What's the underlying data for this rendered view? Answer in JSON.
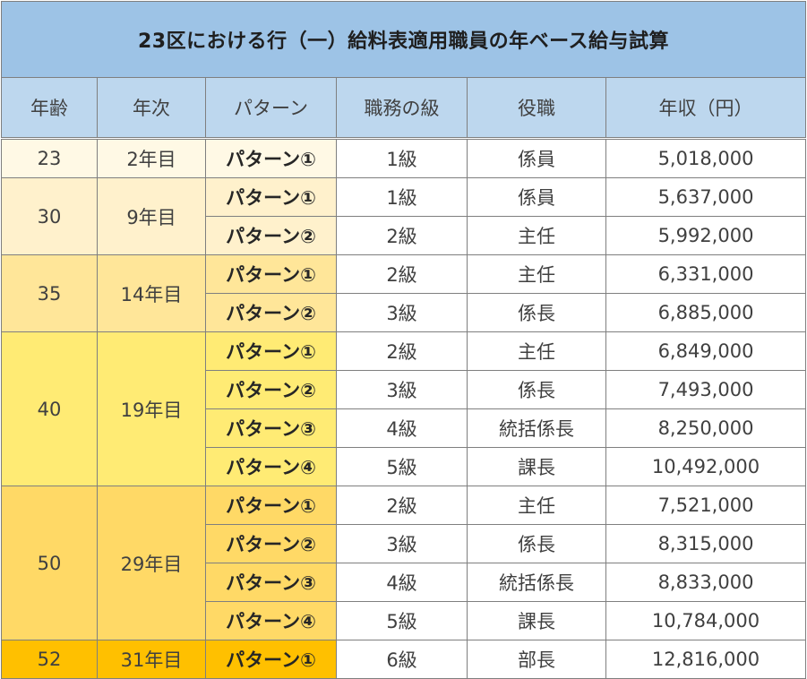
{
  "title": "23区における行（一）給料表適用職員の年ベース給与試算",
  "headers": [
    "年齢",
    "年次",
    "パターン",
    "職務の級",
    "役職",
    "年収（円）"
  ],
  "groups": [
    {
      "age": "23",
      "year": "2年目",
      "color": "#fff9e5",
      "rows": [
        {
          "pattern": "パターン①",
          "grade": "1級",
          "position": "係員",
          "income": "5,018,000"
        }
      ]
    },
    {
      "age": "30",
      "year": "9年目",
      "color": "#fff1cc",
      "rows": [
        {
          "pattern": "パターン①",
          "grade": "1級",
          "position": "係員",
          "income": "5,637,000"
        },
        {
          "pattern": "パターン②",
          "grade": "2級",
          "position": "主任",
          "income": "5,992,000"
        }
      ]
    },
    {
      "age": "35",
      "year": "14年目",
      "color": "#ffe699",
      "rows": [
        {
          "pattern": "パターン①",
          "grade": "2級",
          "position": "主任",
          "income": "6,331,000"
        },
        {
          "pattern": "パターン②",
          "grade": "3級",
          "position": "係長",
          "income": "6,885,000"
        }
      ]
    },
    {
      "age": "40",
      "year": "19年目",
      "color": "#ffeb74",
      "rows": [
        {
          "pattern": "パターン①",
          "grade": "2級",
          "position": "主任",
          "income": "6,849,000"
        },
        {
          "pattern": "パターン②",
          "grade": "3級",
          "position": "係長",
          "income": "7,493,000"
        },
        {
          "pattern": "パターン③",
          "grade": "4級",
          "position": "統括係長",
          "income": "8,250,000"
        },
        {
          "pattern": "パターン④",
          "grade": "5級",
          "position": "課長",
          "income": "10,492,000"
        }
      ]
    },
    {
      "age": "50",
      "year": "29年目",
      "color": "#ffd966",
      "rows": [
        {
          "pattern": "パターン①",
          "grade": "2級",
          "position": "主任",
          "income": "7,521,000"
        },
        {
          "pattern": "パターン②",
          "grade": "3級",
          "position": "係長",
          "income": "8,315,000"
        },
        {
          "pattern": "パターン③",
          "grade": "4級",
          "position": "統括係長",
          "income": "8,833,000"
        },
        {
          "pattern": "パターン④",
          "grade": "5級",
          "position": "課長",
          "income": "10,784,000"
        }
      ]
    },
    {
      "age": "52",
      "year": "31年目",
      "color": "#ffc000",
      "rows": [
        {
          "pattern": "パターン①",
          "grade": "6級",
          "position": "部長",
          "income": "12,816,000"
        }
      ]
    }
  ]
}
